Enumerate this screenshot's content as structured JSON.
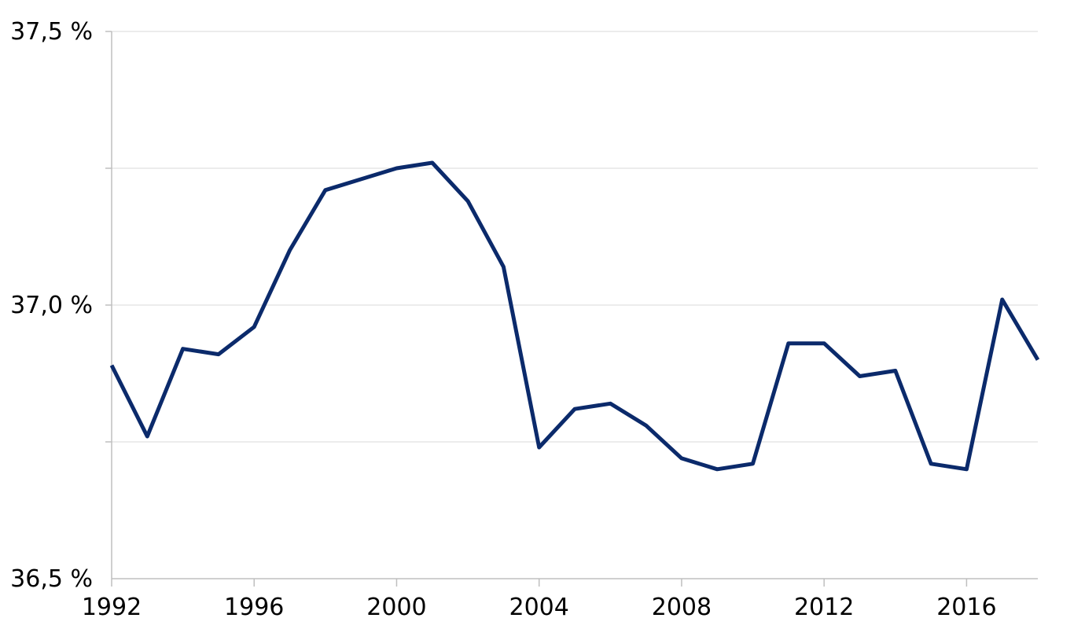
{
  "chart_data": {
    "type": "line",
    "title": "",
    "xlabel": "",
    "ylabel": "",
    "x": [
      1992,
      1993,
      1994,
      1995,
      1996,
      1997,
      1998,
      1999,
      2000,
      2001,
      2002,
      2003,
      2004,
      2005,
      2006,
      2007,
      2008,
      2009,
      2010,
      2011,
      2012,
      2013,
      2014,
      2015,
      2016,
      2017,
      2018
    ],
    "series": [
      {
        "values": [
          36.89,
          36.76,
          36.92,
          36.91,
          36.96,
          37.1,
          37.21,
          37.23,
          37.25,
          37.26,
          37.19,
          37.07,
          36.74,
          36.81,
          36.82,
          36.78,
          36.72,
          36.7,
          36.71,
          36.93,
          36.93,
          36.87,
          36.88,
          36.71,
          36.7,
          37.01,
          36.9
        ],
        "color": "#0b2a6b"
      }
    ],
    "ylim": [
      36.5,
      37.5
    ],
    "ytick_values": [
      36.5,
      37.0,
      37.5
    ],
    "ytick_labels": [
      "36,5 %",
      "37,0 %",
      "37,5 %"
    ],
    "ygrid_values": [
      36.75,
      37.0,
      37.25,
      37.5
    ],
    "xtick_values": [
      1992,
      1996,
      2000,
      2004,
      2008,
      2012,
      2016
    ],
    "xtick_labels": [
      "1992",
      "1996",
      "2000",
      "2004",
      "2008",
      "2012",
      "2016"
    ],
    "xlim": [
      1992,
      2018
    ],
    "grid": true,
    "legend": "none"
  }
}
